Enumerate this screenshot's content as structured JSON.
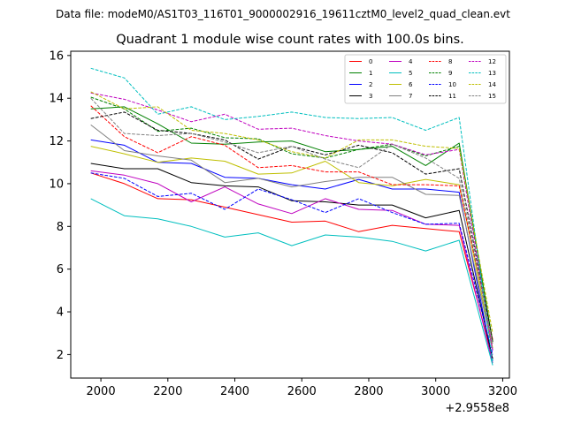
{
  "chart_data": {
    "type": "line",
    "suptitle": "Data file: modeM0/AS1T03_116T01_9000002916_19611cztM0_level2_quad_clean.evt",
    "title": "Quadrant 1 module wise count rates with 100.0s bins.",
    "xlabel": "",
    "ylabel": "",
    "x_offset_label": "+2.9558e8",
    "xlim": [
      1910,
      3220
    ],
    "ylim": [
      0.9,
      16.2
    ],
    "xticks": [
      2000,
      2200,
      2400,
      2600,
      2800,
      3000,
      3200
    ],
    "yticks": [
      2,
      4,
      6,
      8,
      10,
      12,
      14,
      16
    ],
    "legend_position": "top-right",
    "x": [
      1970,
      2070,
      2170,
      2270,
      2370,
      2470,
      2570,
      2670,
      2770,
      2870,
      2970,
      3070,
      3170
    ],
    "series": [
      {
        "name": "0",
        "color": "#ff0000",
        "dash": "solid",
        "values": [
          10.5,
          10.0,
          9.3,
          9.25,
          8.9,
          8.55,
          8.2,
          8.25,
          7.75,
          8.05,
          7.9,
          7.75,
          1.8
        ]
      },
      {
        "name": "1",
        "color": "#008000",
        "dash": "solid",
        "values": [
          13.5,
          13.6,
          12.8,
          11.9,
          11.85,
          11.95,
          12.0,
          11.5,
          11.6,
          11.75,
          10.85,
          11.9,
          2.6
        ]
      },
      {
        "name": "2",
        "color": "#0000ff",
        "dash": "solid",
        "values": [
          12.05,
          11.8,
          11.0,
          10.95,
          10.3,
          10.25,
          9.95,
          9.75,
          10.2,
          9.75,
          9.75,
          9.6,
          1.7
        ]
      },
      {
        "name": "3",
        "color": "#000000",
        "dash": "solid",
        "values": [
          10.95,
          10.7,
          10.7,
          10.05,
          9.9,
          9.85,
          9.2,
          9.15,
          9.0,
          9.0,
          8.4,
          8.75,
          1.8
        ]
      },
      {
        "name": "4",
        "color": "#bf00bf",
        "dash": "solid",
        "values": [
          10.6,
          10.4,
          10.0,
          9.15,
          9.85,
          9.05,
          8.6,
          9.3,
          8.8,
          8.75,
          8.1,
          8.05,
          1.6
        ]
      },
      {
        "name": "5",
        "color": "#00bfbf",
        "dash": "solid",
        "values": [
          9.3,
          8.5,
          8.35,
          8.0,
          7.5,
          7.7,
          7.1,
          7.6,
          7.5,
          7.3,
          6.85,
          7.35,
          1.5
        ]
      },
      {
        "name": "6",
        "color": "#bfbf00",
        "dash": "solid",
        "values": [
          11.75,
          11.4,
          11.0,
          11.2,
          11.05,
          10.45,
          10.5,
          11.05,
          10.05,
          9.9,
          10.2,
          9.95,
          2.3
        ]
      },
      {
        "name": "7",
        "color": "#808080",
        "dash": "solid",
        "values": [
          12.75,
          11.55,
          11.3,
          11.1,
          10.05,
          10.25,
          9.85,
          10.1,
          10.3,
          10.3,
          9.5,
          9.45,
          2.2
        ]
      },
      {
        "name": "8",
        "color": "#ff0000",
        "dash": "dashed",
        "values": [
          13.65,
          12.2,
          11.45,
          12.2,
          11.8,
          10.75,
          10.85,
          10.55,
          10.55,
          9.95,
          9.95,
          9.9,
          2.7
        ]
      },
      {
        "name": "9",
        "color": "#008000",
        "dash": "dashed",
        "values": [
          14.05,
          13.5,
          12.45,
          12.6,
          12.15,
          12.1,
          11.4,
          11.2,
          11.6,
          11.85,
          11.3,
          11.75,
          2.6
        ]
      },
      {
        "name": "10",
        "color": "#0000ff",
        "dash": "dashed",
        "values": [
          10.5,
          10.25,
          9.4,
          9.55,
          8.8,
          9.75,
          9.25,
          8.65,
          9.3,
          8.65,
          8.1,
          8.15,
          2.0
        ]
      },
      {
        "name": "11",
        "color": "#000000",
        "dash": "dashed",
        "values": [
          13.05,
          13.35,
          12.5,
          12.35,
          12.05,
          11.15,
          11.75,
          11.35,
          11.8,
          11.45,
          10.45,
          10.7,
          2.6
        ]
      },
      {
        "name": "12",
        "color": "#bf00bf",
        "dash": "dashed",
        "values": [
          14.25,
          13.95,
          13.45,
          12.9,
          13.25,
          12.55,
          12.6,
          12.25,
          12.0,
          11.85,
          11.35,
          11.6,
          2.2
        ]
      },
      {
        "name": "13",
        "color": "#00bfbf",
        "dash": "dashed",
        "values": [
          15.4,
          14.95,
          13.25,
          13.6,
          13.0,
          13.15,
          13.35,
          13.1,
          13.05,
          13.1,
          12.5,
          13.1,
          1.6
        ]
      },
      {
        "name": "14",
        "color": "#bfbf00",
        "dash": "dashed",
        "values": [
          14.3,
          13.5,
          13.6,
          12.5,
          12.35,
          12.05,
          11.5,
          11.2,
          12.05,
          12.05,
          11.75,
          11.65,
          3.0
        ]
      },
      {
        "name": "15",
        "color": "#808080",
        "dash": "dashed",
        "values": [
          14.0,
          12.35,
          12.25,
          12.35,
          11.95,
          11.45,
          11.75,
          11.15,
          10.75,
          11.85,
          11.2,
          10.25,
          2.5
        ]
      }
    ]
  }
}
